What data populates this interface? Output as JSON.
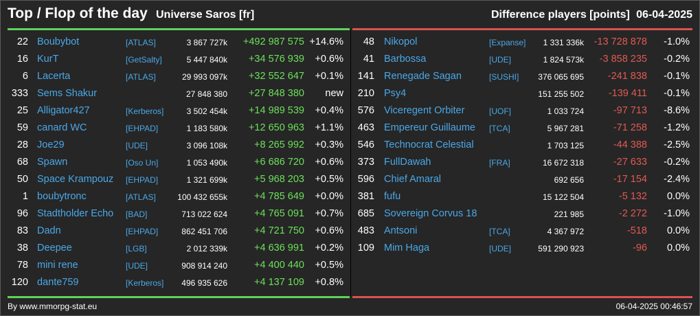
{
  "header": {
    "title": "Top / Flop of the day",
    "universe": "Universe Saros [fr]",
    "metric": "Difference players [points]",
    "date": "06-04-2025"
  },
  "colors": {
    "background": "#262626",
    "top_accent": "#5fd35a",
    "flop_accent": "#d9534f",
    "link": "#4aa8e8",
    "positive": "#6ce05a",
    "negative": "#e05a52"
  },
  "top": [
    {
      "rank": "22",
      "name": "Boubybot",
      "alliance": "[ATLAS]",
      "points": "3 867 727k",
      "diff": "+492 987 575",
      "pct": "+14.6%"
    },
    {
      "rank": "16",
      "name": "KurT",
      "alliance": "[GetSalty]",
      "points": "5 447 840k",
      "diff": "+34 576 939",
      "pct": "+0.6%"
    },
    {
      "rank": "6",
      "name": "Lacerta",
      "alliance": "[ATLAS]",
      "points": "29 993 097k",
      "diff": "+32 552 647",
      "pct": "+0.1%"
    },
    {
      "rank": "333",
      "name": "Sems Shakur",
      "alliance": "",
      "points": "27 848 380",
      "diff": "+27 848 380",
      "pct": "new"
    },
    {
      "rank": "25",
      "name": "Alligator427",
      "alliance": "[Kerberos]",
      "points": "3 502 454k",
      "diff": "+14 989 539",
      "pct": "+0.4%"
    },
    {
      "rank": "59",
      "name": "canard WC",
      "alliance": "[EHPAD]",
      "points": "1 183 580k",
      "diff": "+12 650 963",
      "pct": "+1.1%"
    },
    {
      "rank": "28",
      "name": "Joe29",
      "alliance": "[UDE]",
      "points": "3 096 108k",
      "diff": "+8 265 992",
      "pct": "+0.3%"
    },
    {
      "rank": "68",
      "name": "Spawn",
      "alliance": "[Oso Un]",
      "points": "1 053 490k",
      "diff": "+6 686 720",
      "pct": "+0.6%"
    },
    {
      "rank": "50",
      "name": "Space Krampouz",
      "alliance": "[EHPAD]",
      "points": "1 321 699k",
      "diff": "+5 968 203",
      "pct": "+0.5%"
    },
    {
      "rank": "1",
      "name": "boubytronc",
      "alliance": "[ATLAS]",
      "points": "100 432 655k",
      "diff": "+4 785 649",
      "pct": "+0.0%"
    },
    {
      "rank": "96",
      "name": "Stadtholder Echo",
      "alliance": "[BAD]",
      "points": "713 022 624",
      "diff": "+4 765 091",
      "pct": "+0.7%"
    },
    {
      "rank": "83",
      "name": "Dadn",
      "alliance": "[EHPAD]",
      "points": "862 451 706",
      "diff": "+4 721 750",
      "pct": "+0.6%"
    },
    {
      "rank": "38",
      "name": "Deepee",
      "alliance": "[LGB]",
      "points": "2 012 339k",
      "diff": "+4 636 991",
      "pct": "+0.2%"
    },
    {
      "rank": "78",
      "name": "mini rene",
      "alliance": "[UDE]",
      "points": "908 914 240",
      "diff": "+4 400 440",
      "pct": "+0.5%"
    },
    {
      "rank": "120",
      "name": "dante759",
      "alliance": "[Kerberos]",
      "points": "496 935 626",
      "diff": "+4 137 109",
      "pct": "+0.8%"
    }
  ],
  "flop": [
    {
      "rank": "48",
      "name": "Nikopol",
      "alliance": "[Expanse]",
      "points": "1 331 336k",
      "diff": "-13 728 878",
      "pct": "-1.0%"
    },
    {
      "rank": "41",
      "name": "Barbossa",
      "alliance": "[UDE]",
      "points": "1 824 573k",
      "diff": "-3 858 235",
      "pct": "-0.2%"
    },
    {
      "rank": "141",
      "name": "Renegade Sagan",
      "alliance": "[SUSHI]",
      "points": "376 065 695",
      "diff": "-241 838",
      "pct": "-0.1%"
    },
    {
      "rank": "210",
      "name": "Psy4",
      "alliance": "",
      "points": "151 255 502",
      "diff": "-139 411",
      "pct": "-0.1%"
    },
    {
      "rank": "576",
      "name": "Viceregent Orbiter",
      "alliance": "[UOF]",
      "points": "1 033 724",
      "diff": "-97 713",
      "pct": "-8.6%"
    },
    {
      "rank": "463",
      "name": "Empereur Guillaume",
      "alliance": "[TCA]",
      "points": "5 967 281",
      "diff": "-71 258",
      "pct": "-1.2%"
    },
    {
      "rank": "546",
      "name": "Technocrat Celestial",
      "alliance": "",
      "points": "1 703 125",
      "diff": "-44 388",
      "pct": "-2.5%"
    },
    {
      "rank": "373",
      "name": "FullDawah",
      "alliance": "[FRA]",
      "points": "16 672 318",
      "diff": "-27 633",
      "pct": "-0.2%"
    },
    {
      "rank": "596",
      "name": "Chief Amaral",
      "alliance": "",
      "points": "692 656",
      "diff": "-17 154",
      "pct": "-2.4%"
    },
    {
      "rank": "381",
      "name": "fufu",
      "alliance": "",
      "points": "15 122 504",
      "diff": "-5 132",
      "pct": "0.0%"
    },
    {
      "rank": "685",
      "name": "Sovereign Corvus 18",
      "alliance": "",
      "points": "221 985",
      "diff": "-2 272",
      "pct": "-1.0%"
    },
    {
      "rank": "483",
      "name": "Antsoni",
      "alliance": "[TCA]",
      "points": "4 367 972",
      "diff": "-518",
      "pct": "0.0%"
    },
    {
      "rank": "109",
      "name": "Mim Haga",
      "alliance": "[UDE]",
      "points": "591 290 923",
      "diff": "-96",
      "pct": "0.0%"
    }
  ],
  "footer": {
    "source": "By www.mmorpg-stat.eu",
    "timestamp": "06-04-2025 00:46:57"
  }
}
